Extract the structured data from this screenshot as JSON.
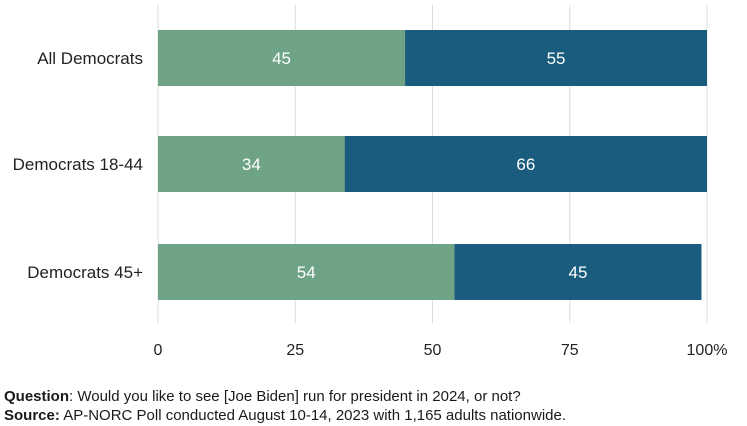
{
  "chart_data": {
    "type": "bar",
    "orientation": "horizontal",
    "stacked": true,
    "categories": [
      "All Democrats",
      "Democrats 18-44",
      "Democrats 45+"
    ],
    "series": [
      {
        "values": [
          45,
          34,
          54
        ],
        "color": "#6fa386"
      },
      {
        "values": [
          55,
          66,
          45
        ],
        "color": "#195c7d"
      }
    ],
    "xlim": [
      0,
      100
    ],
    "xticks": [
      "0",
      "25",
      "50",
      "75",
      "100%"
    ],
    "grid": true
  },
  "footnote": {
    "question_label": "Question",
    "question_text": ": Would you like to see [Joe Biden] run for president in 2024, or not?",
    "source_label": "Source:",
    "source_text": " AP-NORC Poll conducted August 10-14, 2023 with 1,165 adults nationwide."
  }
}
